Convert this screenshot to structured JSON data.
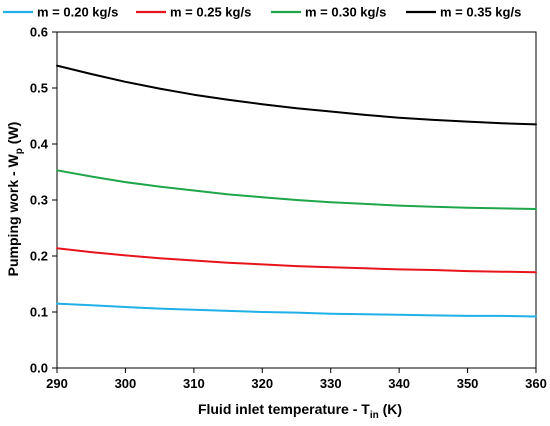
{
  "chart_data": {
    "type": "line",
    "xlabel": "Fluid inlet temperature - T",
    "xlabel_sub": "in",
    "xlabel_unit": " (K)",
    "ylabel": "Pumping work - W",
    "ylabel_sub": "p",
    "ylabel_unit": " (W)",
    "xlim": [
      290,
      360
    ],
    "ylim": [
      0.0,
      0.6
    ],
    "xticks": [
      "290",
      "300",
      "310",
      "320",
      "330",
      "340",
      "350",
      "360"
    ],
    "yticks": [
      "0.0",
      "0.1",
      "0.2",
      "0.3",
      "0.4",
      "0.5",
      "0.6"
    ],
    "grid": false,
    "legend_position": "top",
    "x": [
      290,
      295,
      300,
      305,
      310,
      315,
      320,
      325,
      330,
      335,
      340,
      345,
      350,
      355,
      360
    ],
    "series": [
      {
        "name": "m = 0.20 kg/s",
        "color": "#1fb0e6",
        "values": [
          0.115,
          0.112,
          0.109,
          0.106,
          0.104,
          0.102,
          0.1,
          0.099,
          0.097,
          0.096,
          0.095,
          0.094,
          0.093,
          0.093,
          0.092
        ]
      },
      {
        "name": "m = 0.25 kg/s",
        "color": "#e8141c",
        "values": [
          0.214,
          0.207,
          0.201,
          0.196,
          0.192,
          0.188,
          0.185,
          0.182,
          0.18,
          0.178,
          0.176,
          0.175,
          0.173,
          0.172,
          0.171
        ]
      },
      {
        "name": "m = 0.30 kg/s",
        "color": "#1fa64a",
        "values": [
          0.353,
          0.342,
          0.332,
          0.324,
          0.317,
          0.31,
          0.305,
          0.3,
          0.296,
          0.293,
          0.29,
          0.288,
          0.286,
          0.285,
          0.284
        ]
      },
      {
        "name": "m = 0.35 kg/s",
        "color": "#000000",
        "values": [
          0.54,
          0.525,
          0.511,
          0.499,
          0.488,
          0.479,
          0.471,
          0.464,
          0.458,
          0.452,
          0.447,
          0.443,
          0.44,
          0.437,
          0.435
        ]
      }
    ]
  }
}
